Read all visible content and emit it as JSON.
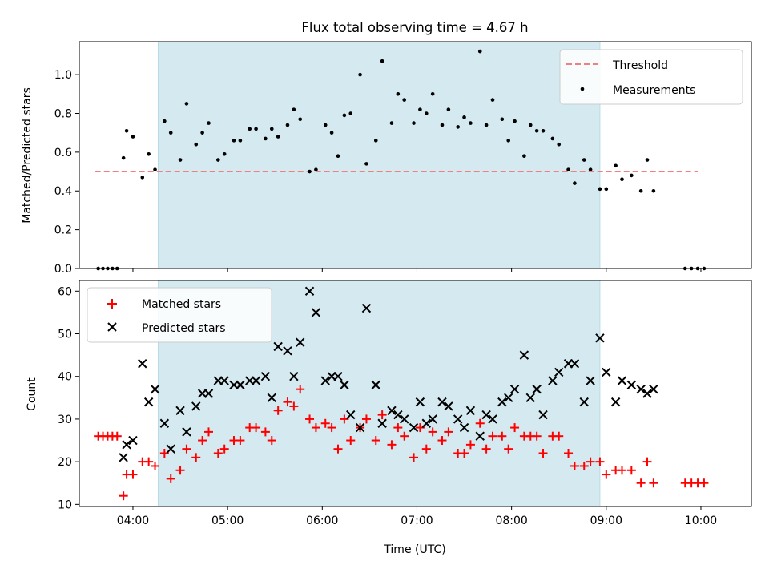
{
  "figure": {
    "title": "Flux total observing time = 4.67 h",
    "xlabel": "Time (UTC)",
    "x_tick_labels": [
      "04:00",
      "05:00",
      "06:00",
      "07:00",
      "08:00",
      "09:00",
      "10:00"
    ],
    "shaded_color": "#d4eaf0"
  },
  "chart_data": [
    {
      "type": "scatter",
      "ylabel": "Matched/Predicted stars",
      "xlim": [
        "03:26",
        "10:32"
      ],
      "ylim": [
        0,
        1.17
      ],
      "x_ticks": [
        "04:00",
        "05:00",
        "06:00",
        "07:00",
        "08:00",
        "09:00",
        "10:00"
      ],
      "y_ticks": [
        0.0,
        0.2,
        0.4,
        0.6,
        0.8,
        1.0
      ],
      "y_tick_labels": [
        "0.0",
        "0.2",
        "0.4",
        "0.6",
        "0.8",
        "1.0"
      ],
      "shaded_span": [
        "04:16",
        "08:56"
      ],
      "legend_position": "top-right",
      "threshold": {
        "name": "Threshold",
        "y": 0.5,
        "x_range": [
          "03:36",
          "09:58"
        ],
        "color": "#f08080"
      },
      "series": [
        {
          "name": "Measurements",
          "color": "#000000",
          "marker": "dot",
          "points": [
            [
              "03:38",
              0
            ],
            [
              "03:41",
              0
            ],
            [
              "03:44",
              0
            ],
            [
              "03:47",
              0
            ],
            [
              "03:50",
              0
            ],
            [
              "03:54",
              0.57
            ],
            [
              "03:56",
              0.71
            ],
            [
              "04:00",
              0.68
            ],
            [
              "04:06",
              0.47
            ],
            [
              "04:10",
              0.59
            ],
            [
              "04:14",
              0.51
            ],
            [
              "04:20",
              0.76
            ],
            [
              "04:24",
              0.7
            ],
            [
              "04:30",
              0.56
            ],
            [
              "04:34",
              0.85
            ],
            [
              "04:40",
              0.64
            ],
            [
              "04:44",
              0.7
            ],
            [
              "04:48",
              0.75
            ],
            [
              "04:54",
              0.56
            ],
            [
              "04:58",
              0.59
            ],
            [
              "05:04",
              0.66
            ],
            [
              "05:08",
              0.66
            ],
            [
              "05:14",
              0.72
            ],
            [
              "05:18",
              0.72
            ],
            [
              "05:24",
              0.67
            ],
            [
              "05:28",
              0.72
            ],
            [
              "05:32",
              0.68
            ],
            [
              "05:38",
              0.74
            ],
            [
              "05:42",
              0.82
            ],
            [
              "05:46",
              0.77
            ],
            [
              "05:52",
              0.5
            ],
            [
              "05:56",
              0.51
            ],
            [
              "06:02",
              0.74
            ],
            [
              "06:06",
              0.7
            ],
            [
              "06:10",
              0.58
            ],
            [
              "06:14",
              0.79
            ],
            [
              "06:18",
              0.8
            ],
            [
              "06:24",
              1.0
            ],
            [
              "06:28",
              0.54
            ],
            [
              "06:34",
              0.66
            ],
            [
              "06:38",
              1.07
            ],
            [
              "06:44",
              0.75
            ],
            [
              "06:48",
              0.9
            ],
            [
              "06:52",
              0.87
            ],
            [
              "06:58",
              0.75
            ],
            [
              "07:02",
              0.82
            ],
            [
              "07:06",
              0.8
            ],
            [
              "07:10",
              0.9
            ],
            [
              "07:16",
              0.74
            ],
            [
              "07:20",
              0.82
            ],
            [
              "07:26",
              0.73
            ],
            [
              "07:30",
              0.78
            ],
            [
              "07:34",
              0.75
            ],
            [
              "07:40",
              1.12
            ],
            [
              "07:44",
              0.74
            ],
            [
              "07:48",
              0.87
            ],
            [
              "07:54",
              0.77
            ],
            [
              "07:58",
              0.66
            ],
            [
              "08:02",
              0.76
            ],
            [
              "08:08",
              0.58
            ],
            [
              "08:12",
              0.74
            ],
            [
              "08:16",
              0.71
            ],
            [
              "08:20",
              0.71
            ],
            [
              "08:26",
              0.67
            ],
            [
              "08:30",
              0.64
            ],
            [
              "08:36",
              0.51
            ],
            [
              "08:40",
              0.44
            ],
            [
              "08:46",
              0.56
            ],
            [
              "08:50",
              0.51
            ],
            [
              "08:56",
              0.41
            ],
            [
              "09:00",
              0.41
            ],
            [
              "09:06",
              0.53
            ],
            [
              "09:10",
              0.46
            ],
            [
              "09:16",
              0.48
            ],
            [
              "09:22",
              0.4
            ],
            [
              "09:26",
              0.56
            ],
            [
              "09:30",
              0.4
            ],
            [
              "09:50",
              0
            ],
            [
              "09:54",
              0
            ],
            [
              "09:58",
              0
            ],
            [
              "10:02",
              0
            ]
          ]
        }
      ]
    },
    {
      "type": "scatter",
      "ylabel": "Count",
      "xlim": [
        "03:26",
        "10:32"
      ],
      "ylim": [
        9.5,
        62.5
      ],
      "x_ticks": [
        "04:00",
        "05:00",
        "06:00",
        "07:00",
        "08:00",
        "09:00",
        "10:00"
      ],
      "y_ticks": [
        10,
        20,
        30,
        40,
        50,
        60
      ],
      "y_tick_labels": [
        "10",
        "20",
        "30",
        "40",
        "50",
        "60"
      ],
      "shaded_span": [
        "04:16",
        "08:56"
      ],
      "legend_position": "top-left",
      "series": [
        {
          "name": "Matched stars",
          "color": "#ff0000",
          "marker": "plus",
          "points": [
            [
              "03:38",
              26
            ],
            [
              "03:41",
              26
            ],
            [
              "03:44",
              26
            ],
            [
              "03:47",
              26
            ],
            [
              "03:50",
              26
            ],
            [
              "03:54",
              12
            ],
            [
              "03:56",
              17
            ],
            [
              "04:00",
              17
            ],
            [
              "04:06",
              20
            ],
            [
              "04:10",
              20
            ],
            [
              "04:14",
              19
            ],
            [
              "04:20",
              22
            ],
            [
              "04:24",
              16
            ],
            [
              "04:30",
              18
            ],
            [
              "04:34",
              23
            ],
            [
              "04:40",
              21
            ],
            [
              "04:44",
              25
            ],
            [
              "04:48",
              27
            ],
            [
              "04:54",
              22
            ],
            [
              "04:58",
              23
            ],
            [
              "05:04",
              25
            ],
            [
              "05:08",
              25
            ],
            [
              "05:14",
              28
            ],
            [
              "05:18",
              28
            ],
            [
              "05:24",
              27
            ],
            [
              "05:28",
              25
            ],
            [
              "05:32",
              32
            ],
            [
              "05:38",
              34
            ],
            [
              "05:42",
              33
            ],
            [
              "05:46",
              37
            ],
            [
              "05:52",
              30
            ],
            [
              "05:56",
              28
            ],
            [
              "06:02",
              29
            ],
            [
              "06:06",
              28
            ],
            [
              "06:10",
              23
            ],
            [
              "06:14",
              30
            ],
            [
              "06:18",
              25
            ],
            [
              "06:24",
              28
            ],
            [
              "06:28",
              30
            ],
            [
              "06:34",
              25
            ],
            [
              "06:38",
              31
            ],
            [
              "06:44",
              24
            ],
            [
              "06:48",
              28
            ],
            [
              "06:52",
              26
            ],
            [
              "06:58",
              21
            ],
            [
              "07:02",
              28
            ],
            [
              "07:06",
              23
            ],
            [
              "07:10",
              27
            ],
            [
              "07:16",
              25
            ],
            [
              "07:20",
              27
            ],
            [
              "07:26",
              22
            ],
            [
              "07:30",
              22
            ],
            [
              "07:34",
              24
            ],
            [
              "07:40",
              29
            ],
            [
              "07:44",
              23
            ],
            [
              "07:48",
              26
            ],
            [
              "07:54",
              26
            ],
            [
              "07:58",
              23
            ],
            [
              "08:02",
              28
            ],
            [
              "08:08",
              26
            ],
            [
              "08:12",
              26
            ],
            [
              "08:16",
              26
            ],
            [
              "08:20",
              22
            ],
            [
              "08:26",
              26
            ],
            [
              "08:30",
              26
            ],
            [
              "08:36",
              22
            ],
            [
              "08:40",
              19
            ],
            [
              "08:46",
              19
            ],
            [
              "08:50",
              20
            ],
            [
              "08:56",
              20
            ],
            [
              "09:00",
              17
            ],
            [
              "09:06",
              18
            ],
            [
              "09:10",
              18
            ],
            [
              "09:16",
              18
            ],
            [
              "09:22",
              15
            ],
            [
              "09:26",
              20
            ],
            [
              "09:30",
              15
            ],
            [
              "09:50",
              15
            ],
            [
              "09:54",
              15
            ],
            [
              "09:58",
              15
            ],
            [
              "10:02",
              15
            ]
          ]
        },
        {
          "name": "Predicted stars",
          "color": "#000000",
          "marker": "x",
          "points": [
            [
              "03:54",
              21
            ],
            [
              "03:56",
              24
            ],
            [
              "04:00",
              25
            ],
            [
              "04:06",
              43
            ],
            [
              "04:10",
              34
            ],
            [
              "04:14",
              37
            ],
            [
              "04:20",
              29
            ],
            [
              "04:24",
              23
            ],
            [
              "04:30",
              32
            ],
            [
              "04:34",
              27
            ],
            [
              "04:40",
              33
            ],
            [
              "04:44",
              36
            ],
            [
              "04:48",
              36
            ],
            [
              "04:54",
              39
            ],
            [
              "04:58",
              39
            ],
            [
              "05:04",
              38
            ],
            [
              "05:08",
              38
            ],
            [
              "05:14",
              39
            ],
            [
              "05:18",
              39
            ],
            [
              "05:24",
              40
            ],
            [
              "05:28",
              35
            ],
            [
              "05:32",
              47
            ],
            [
              "05:38",
              46
            ],
            [
              "05:42",
              40
            ],
            [
              "05:46",
              48
            ],
            [
              "05:52",
              60
            ],
            [
              "05:56",
              55
            ],
            [
              "06:02",
              39
            ],
            [
              "06:06",
              40
            ],
            [
              "06:10",
              40
            ],
            [
              "06:14",
              38
            ],
            [
              "06:18",
              31
            ],
            [
              "06:24",
              28
            ],
            [
              "06:28",
              56
            ],
            [
              "06:34",
              38
            ],
            [
              "06:38",
              29
            ],
            [
              "06:44",
              32
            ],
            [
              "06:48",
              31
            ],
            [
              "06:52",
              30
            ],
            [
              "06:58",
              28
            ],
            [
              "07:02",
              34
            ],
            [
              "07:06",
              29
            ],
            [
              "07:10",
              30
            ],
            [
              "07:16",
              34
            ],
            [
              "07:20",
              33
            ],
            [
              "07:26",
              30
            ],
            [
              "07:30",
              28
            ],
            [
              "07:34",
              32
            ],
            [
              "07:40",
              26
            ],
            [
              "07:44",
              31
            ],
            [
              "07:48",
              30
            ],
            [
              "07:54",
              34
            ],
            [
              "07:58",
              35
            ],
            [
              "08:02",
              37
            ],
            [
              "08:08",
              45
            ],
            [
              "08:12",
              35
            ],
            [
              "08:16",
              37
            ],
            [
              "08:20",
              31
            ],
            [
              "08:26",
              39
            ],
            [
              "08:30",
              41
            ],
            [
              "08:36",
              43
            ],
            [
              "08:40",
              43
            ],
            [
              "08:46",
              34
            ],
            [
              "08:50",
              39
            ],
            [
              "08:56",
              49
            ],
            [
              "09:00",
              41
            ],
            [
              "09:06",
              34
            ],
            [
              "09:10",
              39
            ],
            [
              "09:16",
              38
            ],
            [
              "09:22",
              37
            ],
            [
              "09:26",
              36
            ],
            [
              "09:30",
              37
            ]
          ]
        }
      ]
    }
  ]
}
